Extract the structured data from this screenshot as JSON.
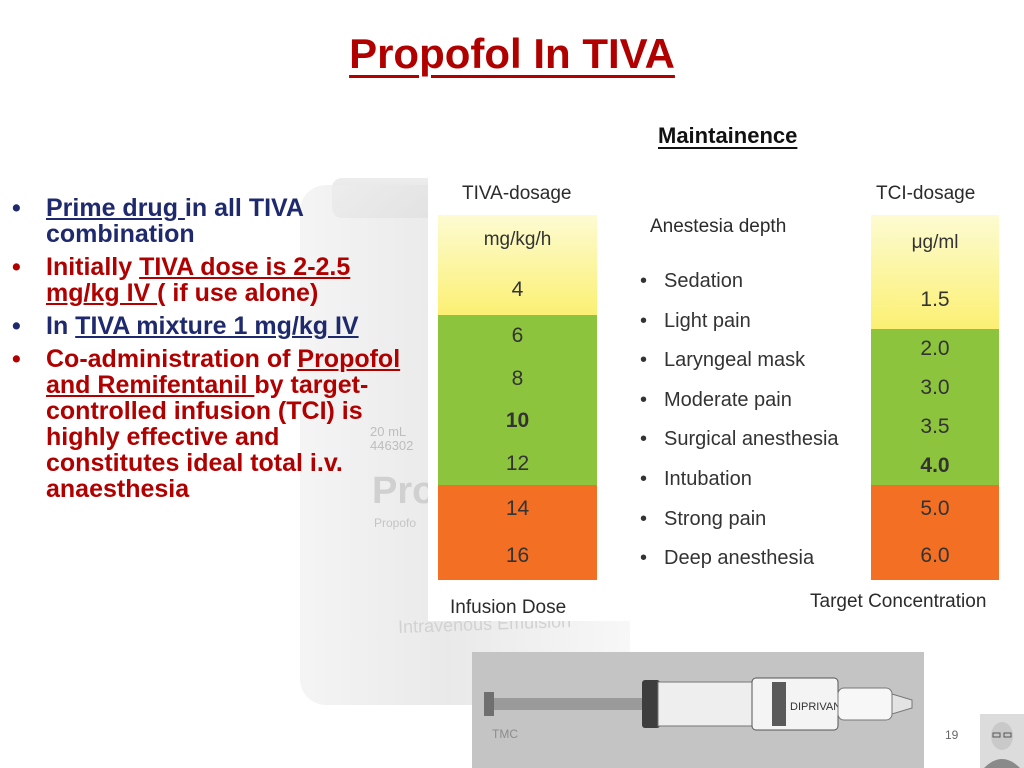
{
  "slide": {
    "title": "Propofol In TIVA",
    "section_label": "Maintainence",
    "tmc_label": "TMC",
    "page_number": "19"
  },
  "bullets": [
    {
      "underlined": "Prime  drug ",
      "plain": "in all TIVA combination",
      "color": "#1f2a6e"
    },
    {
      "plain_before": "Initially  ",
      "underlined": "TIVA dose is 2-2.5 mg/kg IV ",
      "plain": "( if use alone)",
      "color": "#b00000"
    },
    {
      "plain_before": "In ",
      "underlined": "TIVA mixture 1 mg/kg IV",
      "color": "#1f2a6e"
    },
    {
      "plain_before": "Co-administration of ",
      "underlined": "Propofol and Remifentanil ",
      "plain": "by  target-controlled infusion (TCI) is highly effective  and constitutes  ideal total i.v. anaesthesia",
      "color": "#b00000"
    }
  ],
  "figure": {
    "tiva": {
      "header": "TIVA-dosage",
      "unit": "mg/kg/h",
      "footer": "Infusion Dose",
      "yellow_values": [
        "4"
      ],
      "green_values": [
        "6",
        "8",
        "10",
        "12"
      ],
      "orange_values": [
        "14",
        "16"
      ],
      "bold_value": "10"
    },
    "depth": {
      "header": "Anestesia depth",
      "items": [
        "Sedation",
        "Light pain",
        "Laryngeal mask",
        "Moderate pain",
        "Surgical anesthesia",
        "Intubation",
        "Strong pain",
        "Deep anesthesia"
      ]
    },
    "tci": {
      "header": "TCI-dosage",
      "unit": "μg/ml",
      "footer": "Target Concentration",
      "yellow_values": [
        "1.5"
      ],
      "green_values": [
        "2.0",
        "3.0",
        "3.5",
        "4.0"
      ],
      "orange_values": [
        "5.0",
        "6.0"
      ],
      "bold_value": "4.0"
    },
    "colors": {
      "yellow": "#fbf073",
      "green": "#8dc43d",
      "orange": "#f26f23"
    }
  },
  "background_vial": {
    "brand_text": "Pro",
    "volume_text": "20 mL 446302",
    "drug_text": "Propofo",
    "emulsion_text": "Intravenous Emulsion"
  },
  "syringe_label": "DIPRIVAN"
}
